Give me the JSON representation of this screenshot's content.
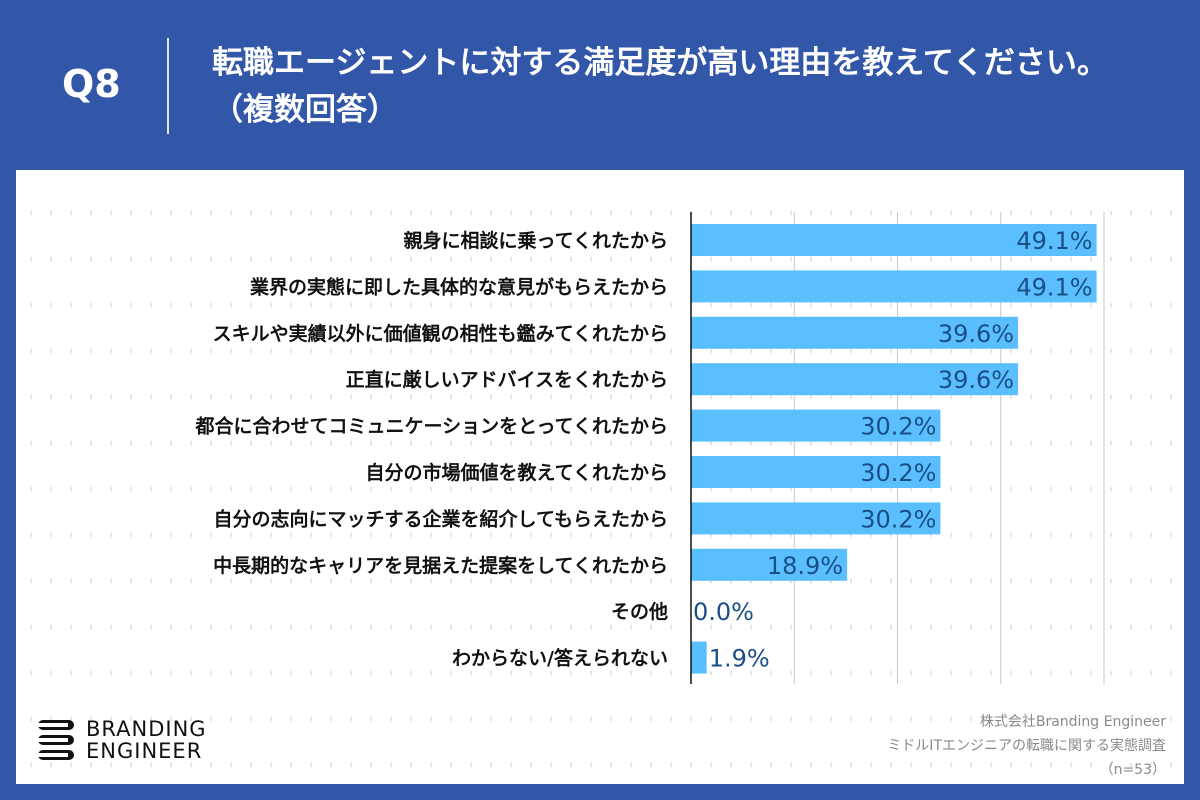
{
  "header": {
    "question_no": "Q8",
    "title": "転職エージェントに対する満足度が高い理由を教えてください。（複数回答）"
  },
  "chart_data": {
    "type": "bar",
    "orientation": "horizontal",
    "categories": [
      "親身に相談に乗ってくれたから",
      "業界の実態に即した具体的な意見がもらえたから",
      "スキルや実績以外に価値観の相性も鑑みてくれたから",
      "正直に厳しいアドバイスをくれたから",
      "都合に合わせてコミュニケーションをとってくれたから",
      "自分の市場価値を教えてくれたから",
      "自分の志向にマッチする企業を紹介してもらえたから",
      "中長期的なキャリアを見据えた提案をしてくれたから",
      "その他",
      "わからない/答えられない"
    ],
    "values": [
      49.1,
      49.1,
      39.6,
      39.6,
      30.2,
      30.2,
      30.2,
      18.9,
      0.0,
      1.9
    ],
    "value_labels": [
      "49.1%",
      "49.1%",
      "39.6%",
      "39.6%",
      "30.2%",
      "30.2%",
      "30.2%",
      "18.9%",
      "0.0%",
      "1.9%"
    ],
    "xlim": [
      0,
      50
    ],
    "gridlines": [
      12.5,
      25,
      37.5,
      50
    ],
    "bar_color": "#5bbfff",
    "label_color": "#1a4f86"
  },
  "footer": {
    "logo_line1": "BRANDING",
    "logo_line2": "ENGINEER",
    "credit_company": "株式会社Branding Engineer",
    "credit_survey": "ミドルITエンジニアの転職に関する実態調査",
    "credit_n": "（n=53）"
  }
}
